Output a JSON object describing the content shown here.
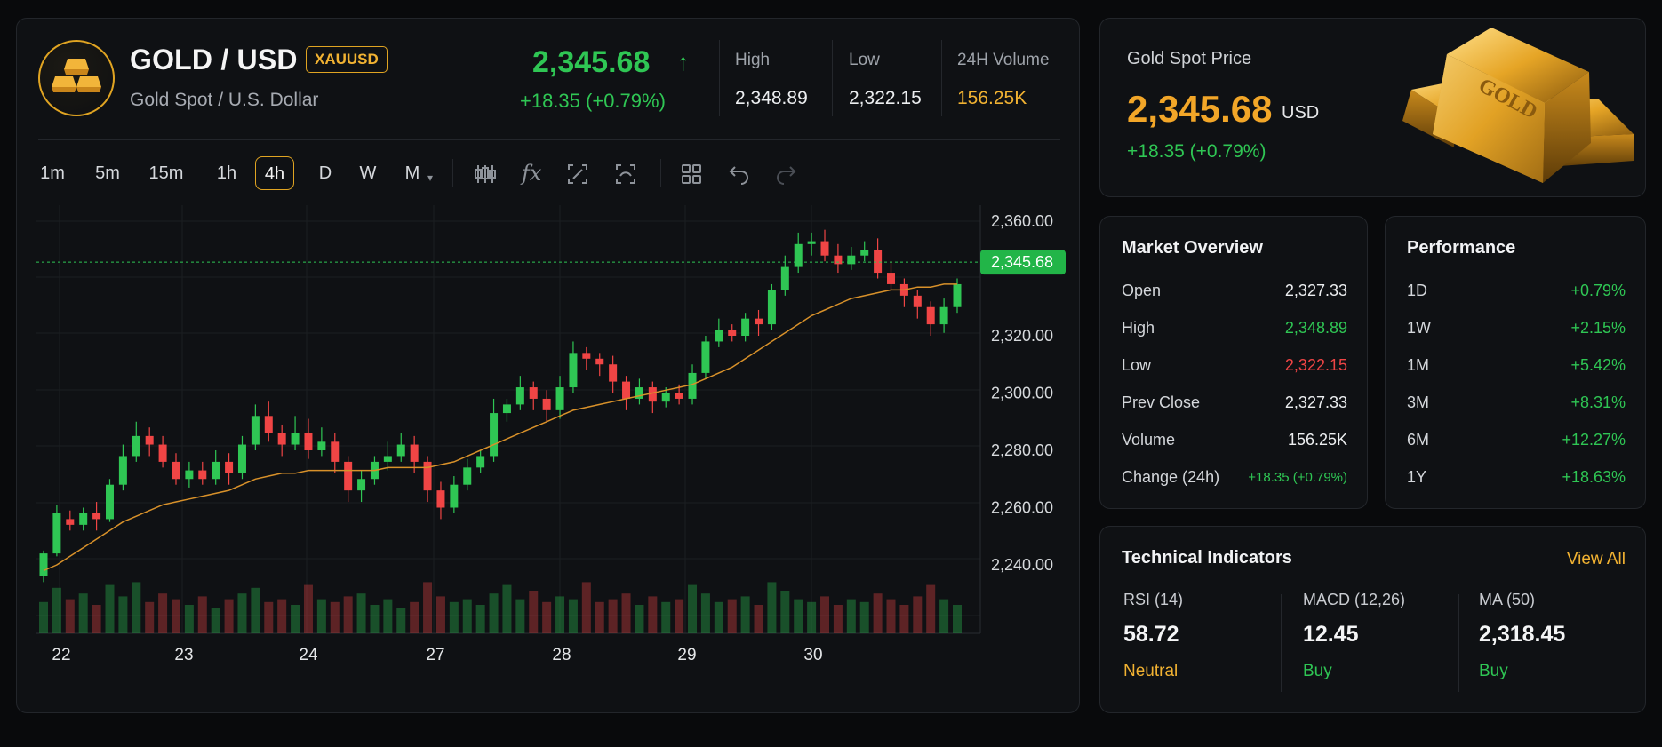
{
  "header": {
    "symbol": "GOLD / USD",
    "badge": "XAUUSD",
    "subtitle": "Gold Spot / U.S. Dollar",
    "price": "2,345.68",
    "arrow": "↑",
    "change": "+18.35 (+0.79%)",
    "stats": [
      {
        "label": "High",
        "value": "2,348.89"
      },
      {
        "label": "Low",
        "value": "2,322.15"
      },
      {
        "label": "24H Volume",
        "value": "156.25K"
      }
    ]
  },
  "toolbar": {
    "timeframes": [
      "1m",
      "5m",
      "15m",
      "1h",
      "4h",
      "D",
      "W",
      "M"
    ],
    "active": "4h",
    "tools": [
      "indicators-icon",
      "formula-icon",
      "measure-icon",
      "screenshot-icon",
      "layout-icon",
      "undo-icon",
      "redo-icon"
    ]
  },
  "chart_data": {
    "type": "candlestick",
    "x_labels": [
      "22",
      "23",
      "24",
      "27",
      "28",
      "29",
      "30"
    ],
    "y_ticks": [
      "2,360.00",
      "2,320.00",
      "2,300.00",
      "2,280.00",
      "2,260.00",
      "2,240.00"
    ],
    "y_tick_values": [
      2360,
      2320,
      2300,
      2280,
      2260,
      2240
    ],
    "current_price_label": "2,345.68",
    "current_price": 2345.68,
    "candles": [
      [
        2236,
        2244,
        2234,
        2245
      ],
      [
        2244,
        2258,
        2243,
        2261
      ],
      [
        2256,
        2254,
        2252,
        2259
      ],
      [
        2254,
        2258,
        2252,
        2260
      ],
      [
        2258,
        2256,
        2252,
        2262
      ],
      [
        2256,
        2268,
        2255,
        2270
      ],
      [
        2268,
        2278,
        2266,
        2282
      ],
      [
        2278,
        2285,
        2276,
        2290
      ],
      [
        2285,
        2282,
        2278,
        2288
      ],
      [
        2282,
        2276,
        2274,
        2285
      ],
      [
        2276,
        2270,
        2268,
        2279
      ],
      [
        2270,
        2273,
        2267,
        2276
      ],
      [
        2273,
        2270,
        2268,
        2276
      ],
      [
        2270,
        2276,
        2268,
        2280
      ],
      [
        2276,
        2272,
        2268,
        2279
      ],
      [
        2272,
        2282,
        2270,
        2285
      ],
      [
        2282,
        2292,
        2280,
        2296
      ],
      [
        2292,
        2286,
        2283,
        2297
      ],
      [
        2286,
        2282,
        2278,
        2289
      ],
      [
        2282,
        2286,
        2280,
        2292
      ],
      [
        2286,
        2280,
        2277,
        2291
      ],
      [
        2280,
        2283,
        2278,
        2288
      ],
      [
        2283,
        2276,
        2272,
        2286
      ],
      [
        2276,
        2266,
        2262,
        2278
      ],
      [
        2266,
        2270,
        2262,
        2273
      ],
      [
        2270,
        2276,
        2268,
        2278
      ],
      [
        2276,
        2278,
        2273,
        2283
      ],
      [
        2278,
        2282,
        2276,
        2286
      ],
      [
        2282,
        2276,
        2272,
        2285
      ],
      [
        2276,
        2266,
        2262,
        2278
      ],
      [
        2266,
        2260,
        2256,
        2269
      ],
      [
        2260,
        2268,
        2258,
        2271
      ],
      [
        2268,
        2274,
        2266,
        2277
      ],
      [
        2274,
        2278,
        2272,
        2280
      ],
      [
        2278,
        2293,
        2276,
        2298
      ],
      [
        2293,
        2296,
        2290,
        2298
      ],
      [
        2296,
        2302,
        2294,
        2306
      ],
      [
        2302,
        2298,
        2294,
        2304
      ],
      [
        2298,
        2294,
        2290,
        2301
      ],
      [
        2294,
        2302,
        2291,
        2306
      ],
      [
        2302,
        2314,
        2300,
        2318
      ],
      [
        2314,
        2312,
        2308,
        2316
      ],
      [
        2312,
        2310,
        2306,
        2314
      ],
      [
        2310,
        2304,
        2300,
        2313
      ],
      [
        2304,
        2298,
        2294,
        2306
      ],
      [
        2298,
        2302,
        2296,
        2305
      ],
      [
        2302,
        2297,
        2293,
        2304
      ],
      [
        2297,
        2300,
        2295,
        2302
      ],
      [
        2300,
        2298,
        2296,
        2303
      ],
      [
        2298,
        2307,
        2296,
        2310
      ],
      [
        2307,
        2318,
        2305,
        2320
      ],
      [
        2318,
        2322,
        2316,
        2326
      ],
      [
        2322,
        2320,
        2318,
        2324
      ],
      [
        2320,
        2326,
        2318,
        2328
      ],
      [
        2326,
        2324,
        2320,
        2329
      ],
      [
        2324,
        2336,
        2322,
        2338
      ],
      [
        2336,
        2344,
        2334,
        2348
      ],
      [
        2344,
        2352,
        2342,
        2356
      ],
      [
        2352,
        2353,
        2348,
        2356
      ],
      [
        2353,
        2348,
        2346,
        2357
      ],
      [
        2348,
        2345,
        2342,
        2352
      ],
      [
        2345,
        2348,
        2343,
        2351
      ],
      [
        2348,
        2350,
        2346,
        2353
      ],
      [
        2350,
        2342,
        2340,
        2354
      ],
      [
        2342,
        2338,
        2336,
        2346
      ],
      [
        2338,
        2334,
        2330,
        2340
      ],
      [
        2334,
        2330,
        2326,
        2336
      ],
      [
        2330,
        2324,
        2320,
        2332
      ],
      [
        2324,
        2330,
        2321,
        2333
      ],
      [
        2330,
        2338,
        2328,
        2340
      ]
    ],
    "ma_line": [
      2238,
      2240,
      2243,
      2246,
      2249,
      2252,
      2255,
      2257,
      2259,
      2261,
      2262,
      2263,
      2264,
      2265,
      2266,
      2268,
      2270,
      2271,
      2272,
      2272,
      2273,
      2273,
      2273,
      2273,
      2273,
      2273,
      2274,
      2274,
      2274,
      2274,
      2275,
      2276,
      2278,
      2280,
      2282,
      2284,
      2286,
      2288,
      2290,
      2292,
      2294,
      2295,
      2296,
      2297,
      2298,
      2299,
      2300,
      2301,
      2302,
      2303,
      2305,
      2307,
      2309,
      2312,
      2315,
      2318,
      2321,
      2324,
      2327,
      2329,
      2331,
      2333,
      2334,
      2335,
      2336,
      2336,
      2337,
      2337,
      2338,
      2338
    ],
    "volumes": [
      0.55,
      0.8,
      0.6,
      0.7,
      0.5,
      0.85,
      0.65,
      0.9,
      0.55,
      0.7,
      0.6,
      0.5,
      0.65,
      0.45,
      0.6,
      0.7,
      0.8,
      0.55,
      0.6,
      0.5,
      0.85,
      0.6,
      0.55,
      0.65,
      0.7,
      0.5,
      0.6,
      0.45,
      0.55,
      0.9,
      0.65,
      0.55,
      0.6,
      0.5,
      0.7,
      0.85,
      0.6,
      0.75,
      0.55,
      0.65,
      0.6,
      0.9,
      0.55,
      0.6,
      0.7,
      0.5,
      0.65,
      0.55,
      0.6,
      0.85,
      0.7,
      0.55,
      0.6,
      0.65,
      0.5,
      0.9,
      0.75,
      0.6,
      0.55,
      0.65,
      0.5,
      0.6,
      0.55,
      0.7,
      0.6,
      0.5,
      0.65,
      0.85,
      0.6,
      0.5
    ]
  },
  "spot": {
    "label": "Gold Spot Price",
    "price": "2,345.68",
    "currency": "USD",
    "change": "+18.35 (+0.79%)",
    "bar_text": "GOLD"
  },
  "overview": {
    "title": "Market Overview",
    "rows": [
      {
        "k": "Open",
        "v": "2,327.33"
      },
      {
        "k": "High",
        "v": "2,348.89"
      },
      {
        "k": "Low",
        "v": "2,322.15"
      },
      {
        "k": "Prev Close",
        "v": "2,327.33"
      },
      {
        "k": "Volume",
        "v": "156.25K"
      },
      {
        "k": "Change (24h)",
        "v": "+18.35 (+0.79%)"
      }
    ]
  },
  "performance": {
    "title": "Performance",
    "rows": [
      {
        "k": "1D",
        "v": "+0.79%"
      },
      {
        "k": "1W",
        "v": "+2.15%"
      },
      {
        "k": "1M",
        "v": "+5.42%"
      },
      {
        "k": "3M",
        "v": "+8.31%"
      },
      {
        "k": "6M",
        "v": "+12.27%"
      },
      {
        "k": "1Y",
        "v": "+18.63%"
      }
    ]
  },
  "technical": {
    "title": "Technical Indicators",
    "link": "View All",
    "items": [
      {
        "name": "RSI (14)",
        "value": "58.72",
        "signal": "Neutral"
      },
      {
        "name": "MACD (12,26)",
        "value": "12.45",
        "signal": "Buy"
      },
      {
        "name": "MA (50)",
        "value": "2,318.45",
        "signal": "Buy"
      }
    ]
  },
  "colors": {
    "up": "#2fc654",
    "down": "#f04545",
    "accent": "#f1b232",
    "ma": "#d8912a"
  }
}
